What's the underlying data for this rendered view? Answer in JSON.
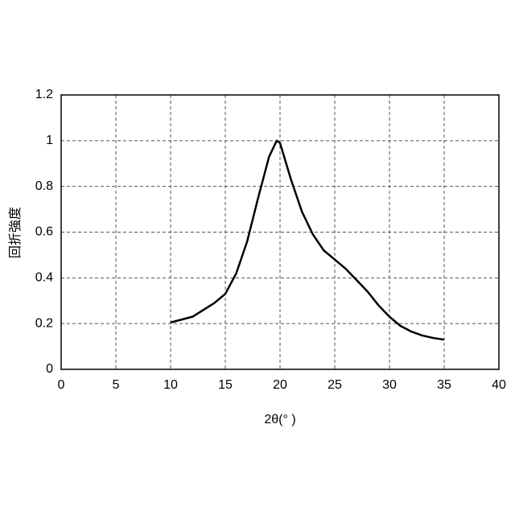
{
  "chart_data": {
    "type": "line",
    "x_label": "2θ(° )",
    "y_label": "回折強度",
    "x": [
      10,
      12,
      14,
      15,
      16,
      17,
      18,
      19,
      19.7,
      20,
      21,
      22,
      23,
      24,
      25,
      26,
      27,
      28,
      29,
      30,
      31,
      32,
      33,
      34,
      35
    ],
    "series": [
      {
        "color": "#000000",
        "values": [
          0.205,
          0.23,
          0.29,
          0.33,
          0.42,
          0.56,
          0.75,
          0.93,
          1.0,
          0.99,
          0.83,
          0.69,
          0.59,
          0.52,
          0.48,
          0.44,
          0.39,
          0.34,
          0.28,
          0.23,
          0.19,
          0.165,
          0.148,
          0.137,
          0.13
        ]
      }
    ],
    "xlim": [
      0,
      40
    ],
    "xticks": [
      0,
      5,
      10,
      15,
      20,
      25,
      30,
      35,
      40
    ],
    "ylim": [
      0,
      1.2
    ],
    "yticks": [
      0,
      0.2,
      0.4,
      0.6,
      0.8,
      1,
      1.2
    ],
    "grid": true
  }
}
